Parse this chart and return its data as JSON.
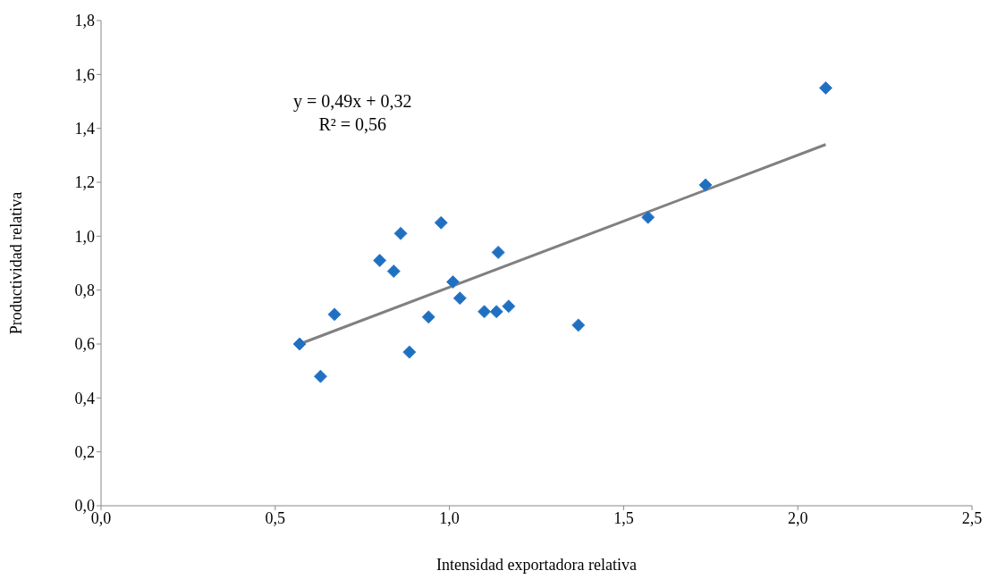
{
  "chart_data": {
    "type": "scatter",
    "xlabel": "Intensidad exportadora relativa",
    "ylabel": "Productividad relativa",
    "xlim": [
      0,
      2.5
    ],
    "xticks": [
      {
        "value": 0,
        "label": "0,0"
      },
      {
        "value": 0.5,
        "label": "0,5"
      },
      {
        "value": 1,
        "label": "1,0"
      },
      {
        "value": 1.5,
        "label": "1,5"
      },
      {
        "value": 2,
        "label": "2,0"
      },
      {
        "value": 2.5,
        "label": "2,5"
      }
    ],
    "ylim": [
      0,
      1.8
    ],
    "yticks": [
      {
        "value": 0,
        "label": "0,0"
      },
      {
        "value": 0.2,
        "label": "0,2"
      },
      {
        "value": 0.4,
        "label": "0,4"
      },
      {
        "value": 0.6,
        "label": "0,6"
      },
      {
        "value": 0.8,
        "label": "0,8"
      },
      {
        "value": 1,
        "label": "1,0"
      },
      {
        "value": 1.2,
        "label": "1,2"
      },
      {
        "value": 1.4,
        "label": "1,4"
      },
      {
        "value": 1.6,
        "label": "1,6"
      },
      {
        "value": 1.8,
        "label": "1,8"
      }
    ],
    "annotations": [
      "y = 0,49x + 0,32",
      "R² = 0,56"
    ],
    "series": [
      {
        "marker": "diamond",
        "color": "#1f70c1",
        "x": [
          0.57,
          0.63,
          0.67,
          0.8,
          0.84,
          0.86,
          0.885,
          0.94,
          0.976,
          1.01,
          1.03,
          1.1,
          1.135,
          1.14,
          1.17,
          1.37,
          1.57,
          1.735,
          2.08
        ],
        "values": [
          0.6,
          0.48,
          0.71,
          0.91,
          0.87,
          1.01,
          0.57,
          0.7,
          1.05,
          0.83,
          0.77,
          0.72,
          0.72,
          0.94,
          0.74,
          0.67,
          1.07,
          1.19,
          1.55
        ]
      },
      {
        "type": "line",
        "color": "#808080",
        "x": [
          0.57,
          2.08
        ],
        "values": [
          0.6,
          1.34
        ]
      }
    ]
  }
}
